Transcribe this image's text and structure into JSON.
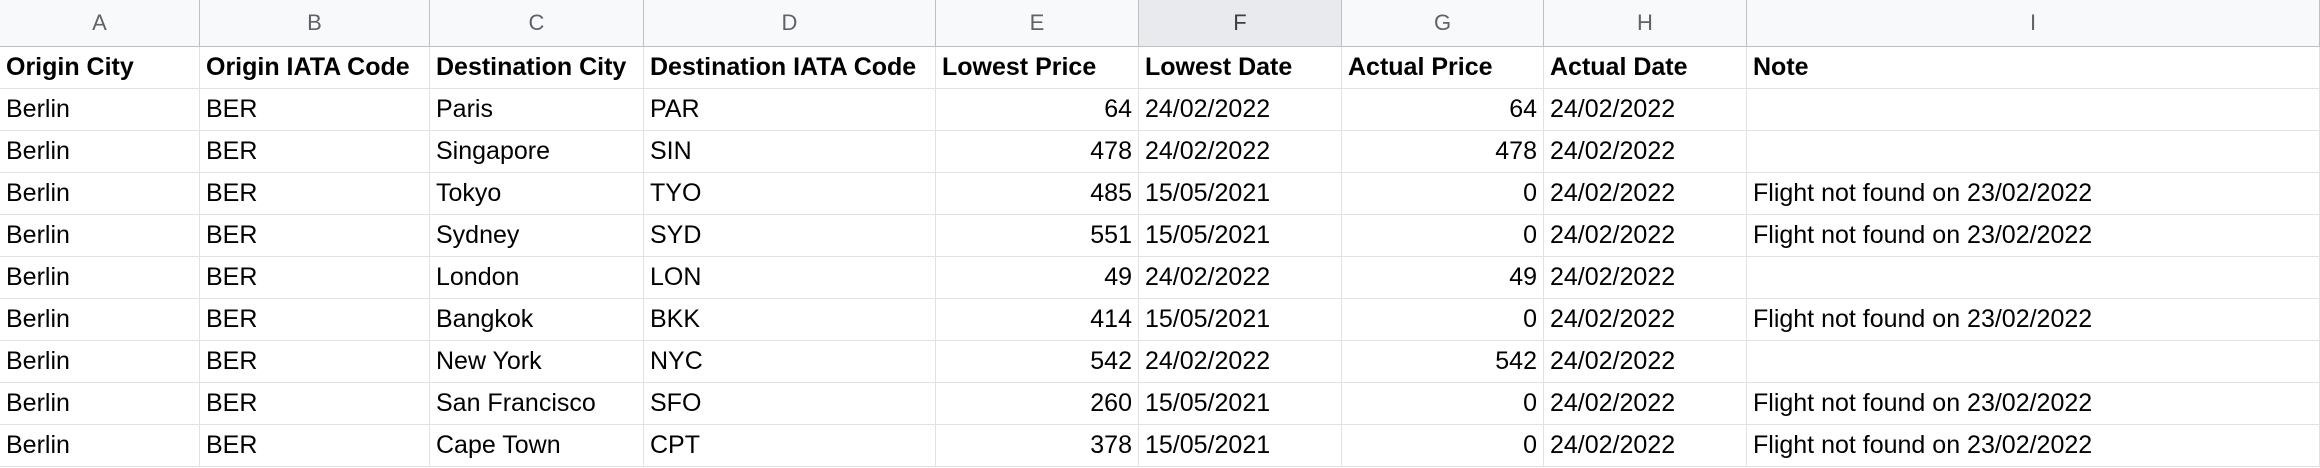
{
  "columns": [
    "A",
    "B",
    "C",
    "D",
    "E",
    "F",
    "G",
    "H",
    "I"
  ],
  "selected_column": "F",
  "header": [
    "Origin City",
    "Origin IATA Code",
    "Destination City",
    "Destination IATA Code",
    "Lowest Price",
    "Lowest Date",
    "Actual Price",
    "Actual Date",
    "Note"
  ],
  "rows": [
    [
      "Berlin",
      "BER",
      "Paris",
      "PAR",
      "64",
      "24/02/2022",
      "64",
      "24/02/2022",
      ""
    ],
    [
      "Berlin",
      "BER",
      "Singapore",
      "SIN",
      "478",
      "24/02/2022",
      "478",
      "24/02/2022",
      ""
    ],
    [
      "Berlin",
      "BER",
      "Tokyo",
      "TYO",
      "485",
      "15/05/2021",
      "0",
      "24/02/2022",
      "Flight not found on 23/02/2022"
    ],
    [
      "Berlin",
      "BER",
      "Sydney",
      "SYD",
      "551",
      "15/05/2021",
      "0",
      "24/02/2022",
      "Flight not found on 23/02/2022"
    ],
    [
      "Berlin",
      "BER",
      "London",
      "LON",
      "49",
      "24/02/2022",
      "49",
      "24/02/2022",
      ""
    ],
    [
      "Berlin",
      "BER",
      "Bangkok",
      "BKK",
      "414",
      "15/05/2021",
      "0",
      "24/02/2022",
      "Flight not found on 23/02/2022"
    ],
    [
      "Berlin",
      "BER",
      "New York",
      "NYC",
      "542",
      "24/02/2022",
      "542",
      "24/02/2022",
      ""
    ],
    [
      "Berlin",
      "BER",
      "San Francisco",
      "SFO",
      "260",
      "15/05/2021",
      "0",
      "24/02/2022",
      "Flight not found on 23/02/2022"
    ],
    [
      "Berlin",
      "BER",
      "Cape Town",
      "CPT",
      "378",
      "15/05/2021",
      "0",
      "24/02/2022",
      "Flight not found on 23/02/2022"
    ]
  ],
  "colors": {
    "header_bg": "#f8f9fa",
    "selected_header_bg": "#e8eaed",
    "grid_line": "#e2e2e3"
  }
}
